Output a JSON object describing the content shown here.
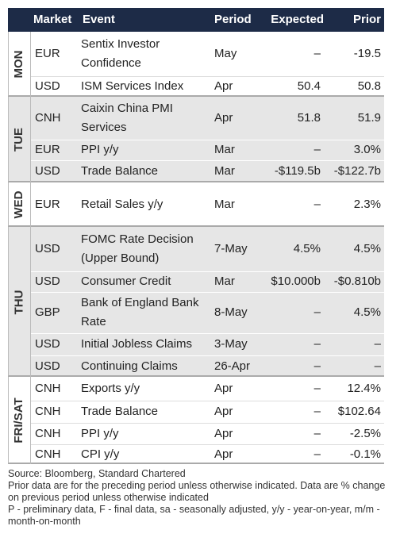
{
  "header": {
    "columns": [
      "Market",
      "Event",
      "Period",
      "Expected",
      "Prior"
    ]
  },
  "days": [
    {
      "day": "MON",
      "rows": [
        [
          "EUR",
          "Sentix Investor Confidence",
          "May",
          "–",
          "-19.5"
        ],
        [
          "USD",
          "ISM Services Index",
          "Apr",
          "50.4",
          "50.8"
        ]
      ]
    },
    {
      "day": "TUE",
      "rows": [
        [
          "CNH",
          "Caixin China PMI Services",
          "Apr",
          "51.8",
          "51.9"
        ],
        [
          "EUR",
          "PPI y/y",
          "Mar",
          "–",
          "3.0%"
        ],
        [
          "USD",
          "Trade Balance",
          "Mar",
          "-$119.5b",
          "-$122.7b"
        ]
      ]
    },
    {
      "day": "WED",
      "rows": [
        [
          "EUR",
          "Retail Sales y/y",
          "Mar",
          "–",
          "2.3%"
        ]
      ]
    },
    {
      "day": "THU",
      "rows": [
        [
          "USD",
          "FOMC Rate Decision (Upper Bound)",
          "7-May",
          "4.5%",
          "4.5%"
        ],
        [
          "USD",
          "Consumer Credit",
          "Mar",
          "$10.000b",
          "-$0.810b"
        ],
        [
          "GBP",
          "Bank of England Bank Rate",
          "8-May",
          "–",
          "4.5%"
        ],
        [
          "USD",
          "Initial Jobless Claims",
          "3-May",
          "–",
          "–"
        ],
        [
          "USD",
          "Continuing Claims",
          "26-Apr",
          "–",
          "–"
        ]
      ]
    },
    {
      "day": "FRI/SAT",
      "rows": [
        [
          "CNH",
          "Exports y/y",
          "Apr",
          "–",
          "12.4%"
        ],
        [
          "CNH",
          "Trade Balance",
          "Apr",
          "–",
          "$102.64"
        ],
        [
          "CNH",
          "PPI y/y",
          "Apr",
          "–",
          "-2.5%"
        ],
        [
          "CNH",
          "CPI y/y",
          "Apr",
          "–",
          "-0.1%"
        ]
      ]
    }
  ],
  "footnotes": [
    "Source: Bloomberg, Standard Chartered",
    "Prior data are for the preceding period unless otherwise indicated. Data are % change on previous period unless otherwise indicated",
    "P - preliminary data, F - final data, sa - seasonally adjusted, y/y - year-on-year, m/m - month-on-month"
  ]
}
